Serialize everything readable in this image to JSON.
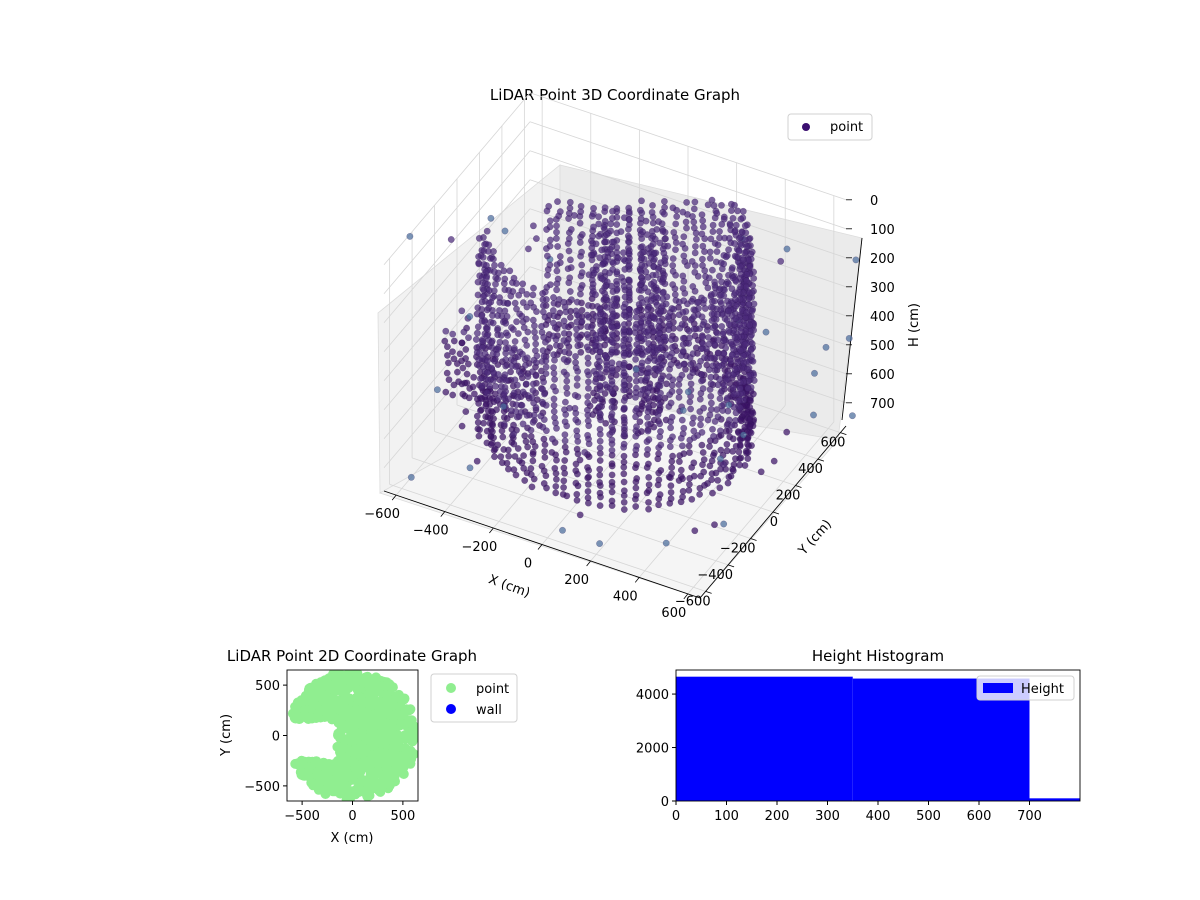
{
  "figure": {
    "background": "#ffffff"
  },
  "chart_data": [
    {
      "type": "scatter",
      "projection": "3d",
      "title": "LiDAR Point 3D Coordinate Graph",
      "xlabel": "X (cm)",
      "ylabel": "Y (cm)",
      "zlabel": "H (cm)",
      "xlim": [
        -650,
        650
      ],
      "ylim": [
        -650,
        650
      ],
      "zlim": [
        780,
        0
      ],
      "z_inverted": true,
      "xticks": [
        "−600",
        "−400",
        "−200",
        "0",
        "200",
        "400",
        "600"
      ],
      "yticks": [
        "−600",
        "−400",
        "−200",
        "0",
        "200",
        "400",
        "600"
      ],
      "zticks": [
        "0",
        "100",
        "200",
        "300",
        "400",
        "500",
        "600",
        "700"
      ],
      "legend": [
        {
          "label": "point",
          "color": "#3b0f70"
        }
      ],
      "legend_position": "upper-right",
      "colormap": "viridis",
      "grid": true,
      "series": [
        {
          "name": "point",
          "shape": "cylindrical wall scan, radius ~500 cm, open toward −X, heights 0–700 cm, inner column near center, sparse outliers",
          "sample_points": [
            {
              "x": 500,
              "y": 0,
              "h": 0
            },
            {
              "x": 0,
              "y": 500,
              "h": 0
            },
            {
              "x": 0,
              "y": -500,
              "h": 100
            },
            {
              "x": 350,
              "y": 350,
              "h": 300
            },
            {
              "x": 350,
              "y": -350,
              "h": 500
            },
            {
              "x": -350,
              "y": 350,
              "h": 200
            },
            {
              "x": -350,
              "y": -350,
              "h": 600
            },
            {
              "x": 500,
              "y": 0,
              "h": 700
            },
            {
              "x": -600,
              "y": -100,
              "h": 650
            },
            {
              "x": 0,
              "y": 0,
              "h": 400
            }
          ]
        }
      ]
    },
    {
      "type": "scatter",
      "title": "LiDAR Point 2D Coordinate Graph",
      "xlabel": "X (cm)",
      "ylabel": "Y (cm)",
      "xlim": [
        -650,
        650
      ],
      "ylim": [
        -650,
        650
      ],
      "xticks": [
        "−500",
        "0",
        "500"
      ],
      "yticks": [
        "500",
        "0",
        "−500"
      ],
      "legend_position": "outside-right",
      "series": [
        {
          "name": "point",
          "color": "#90ee90",
          "description": "dense filled disc of points, radius ~600 cm, with a gap on the −X side"
        },
        {
          "name": "wall",
          "color": "#0000ff",
          "points": []
        }
      ]
    },
    {
      "type": "bar",
      "title": "Height Histogram",
      "xlabel": "",
      "ylabel": "",
      "xlim": [
        0,
        800
      ],
      "ylim": [
        0,
        4900
      ],
      "xticks": [
        "0",
        "100",
        "200",
        "300",
        "400",
        "500",
        "600",
        "700"
      ],
      "yticks": [
        "0",
        "2000",
        "4000"
      ],
      "legend": [
        {
          "label": "Height",
          "color": "#0000ff"
        }
      ],
      "legend_position": "upper-right",
      "bars": [
        {
          "from": 0,
          "to": 350,
          "count": 4650
        },
        {
          "from": 350,
          "to": 700,
          "count": 4580
        },
        {
          "from": 700,
          "to": 800,
          "count": 100
        }
      ],
      "color": "#0000ff"
    }
  ]
}
